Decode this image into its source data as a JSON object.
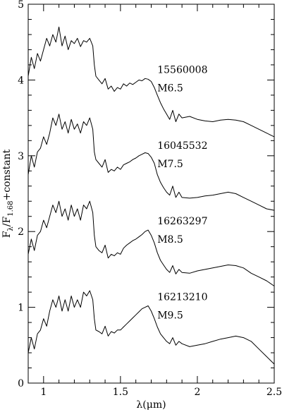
{
  "chart_data": {
    "type": "line",
    "xlabel": "λ(μm)",
    "ylabel": {
      "main": "F",
      "sub1": "λ",
      "mid": "/F",
      "sub2": "1.68",
      "tail": "+constant"
    },
    "xlim": [
      0.9,
      2.5
    ],
    "ylim": [
      0,
      5
    ],
    "xticks": [
      1,
      1.5,
      2,
      2.5
    ],
    "xtick_labels": [
      "1",
      "1.5",
      "2",
      "2.5"
    ],
    "yticks": [
      0,
      1,
      2,
      3,
      4,
      5
    ],
    "ytick_labels": [
      "0",
      "1",
      "2",
      "3",
      "4",
      "5"
    ],
    "grid": false,
    "legend": "none",
    "series": [
      {
        "id": "15560008",
        "label_id": "15560008",
        "label_type": "M6.5",
        "offset": 3.0,
        "x": [
          0.9,
          0.92,
          0.94,
          0.96,
          0.98,
          1.0,
          1.02,
          1.04,
          1.06,
          1.08,
          1.1,
          1.12,
          1.14,
          1.16,
          1.18,
          1.2,
          1.22,
          1.24,
          1.26,
          1.28,
          1.3,
          1.32,
          1.33,
          1.34,
          1.36,
          1.38,
          1.4,
          1.42,
          1.44,
          1.46,
          1.48,
          1.5,
          1.52,
          1.54,
          1.56,
          1.58,
          1.6,
          1.62,
          1.64,
          1.66,
          1.68,
          1.7,
          1.72,
          1.74,
          1.76,
          1.78,
          1.8,
          1.82,
          1.84,
          1.86,
          1.88,
          1.9,
          1.95,
          2.0,
          2.05,
          2.1,
          2.15,
          2.2,
          2.25,
          2.3,
          2.35,
          2.4,
          2.45,
          2.5
        ],
        "y": [
          4.05,
          4.3,
          4.15,
          4.35,
          4.25,
          4.4,
          4.55,
          4.45,
          4.6,
          4.5,
          4.7,
          4.45,
          4.58,
          4.4,
          4.52,
          4.48,
          4.55,
          4.44,
          4.52,
          4.5,
          4.55,
          4.45,
          4.2,
          4.05,
          4.0,
          3.95,
          4.02,
          3.88,
          3.92,
          3.85,
          3.9,
          3.88,
          3.95,
          3.92,
          3.96,
          3.94,
          3.97,
          4.0,
          3.99,
          4.02,
          4.01,
          3.98,
          3.9,
          3.8,
          3.7,
          3.62,
          3.55,
          3.48,
          3.6,
          3.45,
          3.55,
          3.5,
          3.52,
          3.48,
          3.46,
          3.45,
          3.47,
          3.48,
          3.47,
          3.45,
          3.4,
          3.35,
          3.3,
          3.25
        ]
      },
      {
        "id": "16045532",
        "label_id": "16045532",
        "label_type": "M7.5",
        "offset": 2.0,
        "x": [
          0.9,
          0.92,
          0.94,
          0.96,
          0.98,
          1.0,
          1.02,
          1.04,
          1.06,
          1.08,
          1.1,
          1.12,
          1.14,
          1.16,
          1.18,
          1.2,
          1.22,
          1.24,
          1.26,
          1.28,
          1.3,
          1.32,
          1.33,
          1.34,
          1.36,
          1.38,
          1.4,
          1.42,
          1.44,
          1.46,
          1.48,
          1.5,
          1.52,
          1.54,
          1.56,
          1.58,
          1.6,
          1.62,
          1.64,
          1.66,
          1.68,
          1.7,
          1.72,
          1.74,
          1.76,
          1.78,
          1.8,
          1.82,
          1.84,
          1.86,
          1.88,
          1.9,
          1.95,
          2.0,
          2.05,
          2.1,
          2.15,
          2.2,
          2.25,
          2.3,
          2.35,
          2.4,
          2.45,
          2.5
        ],
        "y": [
          2.75,
          3.0,
          2.85,
          3.05,
          3.1,
          3.25,
          3.15,
          3.3,
          3.5,
          3.4,
          3.55,
          3.35,
          3.45,
          3.3,
          3.48,
          3.35,
          3.42,
          3.3,
          3.45,
          3.4,
          3.5,
          3.35,
          3.05,
          2.95,
          2.9,
          2.85,
          2.95,
          2.78,
          2.82,
          2.8,
          2.85,
          2.82,
          2.88,
          2.9,
          2.92,
          2.95,
          2.97,
          3.0,
          3.02,
          3.04,
          3.03,
          2.98,
          2.9,
          2.75,
          2.65,
          2.58,
          2.52,
          2.48,
          2.6,
          2.45,
          2.52,
          2.45,
          2.44,
          2.45,
          2.47,
          2.48,
          2.5,
          2.52,
          2.5,
          2.45,
          2.4,
          2.35,
          2.3,
          2.28
        ]
      },
      {
        "id": "16263297",
        "label_id": "16263297",
        "label_type": "M8.5",
        "offset": 1.0,
        "x": [
          0.9,
          0.92,
          0.94,
          0.96,
          0.98,
          1.0,
          1.02,
          1.04,
          1.06,
          1.08,
          1.1,
          1.12,
          1.14,
          1.16,
          1.18,
          1.2,
          1.22,
          1.24,
          1.26,
          1.28,
          1.3,
          1.32,
          1.33,
          1.34,
          1.36,
          1.38,
          1.4,
          1.42,
          1.44,
          1.46,
          1.48,
          1.5,
          1.52,
          1.54,
          1.56,
          1.58,
          1.6,
          1.62,
          1.64,
          1.66,
          1.68,
          1.7,
          1.72,
          1.74,
          1.76,
          1.78,
          1.8,
          1.82,
          1.84,
          1.86,
          1.88,
          1.9,
          1.95,
          2.0,
          2.05,
          2.1,
          2.15,
          2.2,
          2.25,
          2.3,
          2.35,
          2.4,
          2.45,
          2.5
        ],
        "y": [
          1.7,
          1.9,
          1.75,
          1.95,
          2.0,
          2.15,
          2.05,
          2.2,
          2.35,
          2.25,
          2.4,
          2.2,
          2.3,
          2.15,
          2.35,
          2.2,
          2.3,
          2.15,
          2.35,
          2.3,
          2.4,
          2.25,
          1.95,
          1.8,
          1.75,
          1.72,
          1.82,
          1.65,
          1.7,
          1.68,
          1.72,
          1.7,
          1.78,
          1.82,
          1.85,
          1.88,
          1.9,
          1.93,
          1.96,
          2.0,
          2.02,
          1.95,
          1.85,
          1.72,
          1.62,
          1.56,
          1.5,
          1.46,
          1.55,
          1.44,
          1.5,
          1.46,
          1.45,
          1.48,
          1.5,
          1.52,
          1.54,
          1.56,
          1.55,
          1.52,
          1.45,
          1.4,
          1.35,
          1.28
        ]
      },
      {
        "id": "16213210",
        "label_id": "16213210",
        "label_type": "M9.5",
        "offset": 0.0,
        "x": [
          0.9,
          0.92,
          0.94,
          0.96,
          0.98,
          1.0,
          1.02,
          1.04,
          1.06,
          1.08,
          1.1,
          1.12,
          1.14,
          1.16,
          1.18,
          1.2,
          1.22,
          1.24,
          1.26,
          1.28,
          1.3,
          1.32,
          1.33,
          1.34,
          1.36,
          1.38,
          1.4,
          1.42,
          1.44,
          1.46,
          1.48,
          1.5,
          1.52,
          1.54,
          1.56,
          1.58,
          1.6,
          1.62,
          1.64,
          1.66,
          1.68,
          1.7,
          1.72,
          1.74,
          1.76,
          1.78,
          1.8,
          1.82,
          1.84,
          1.86,
          1.88,
          1.9,
          1.95,
          2.0,
          2.05,
          2.1,
          2.15,
          2.2,
          2.25,
          2.3,
          2.35,
          2.4,
          2.45,
          2.5
        ],
        "y": [
          0.4,
          0.6,
          0.45,
          0.65,
          0.7,
          0.85,
          0.75,
          0.95,
          1.1,
          1.0,
          1.15,
          0.95,
          1.1,
          0.95,
          1.15,
          1.0,
          1.1,
          1.0,
          1.2,
          1.15,
          1.22,
          1.1,
          0.85,
          0.7,
          0.68,
          0.65,
          0.75,
          0.62,
          0.68,
          0.66,
          0.7,
          0.7,
          0.74,
          0.78,
          0.82,
          0.86,
          0.9,
          0.94,
          0.98,
          1.0,
          1.02,
          0.95,
          0.85,
          0.74,
          0.65,
          0.6,
          0.55,
          0.52,
          0.6,
          0.5,
          0.55,
          0.52,
          0.48,
          0.5,
          0.52,
          0.55,
          0.58,
          0.6,
          0.62,
          0.6,
          0.55,
          0.45,
          0.35,
          0.25
        ]
      }
    ]
  }
}
